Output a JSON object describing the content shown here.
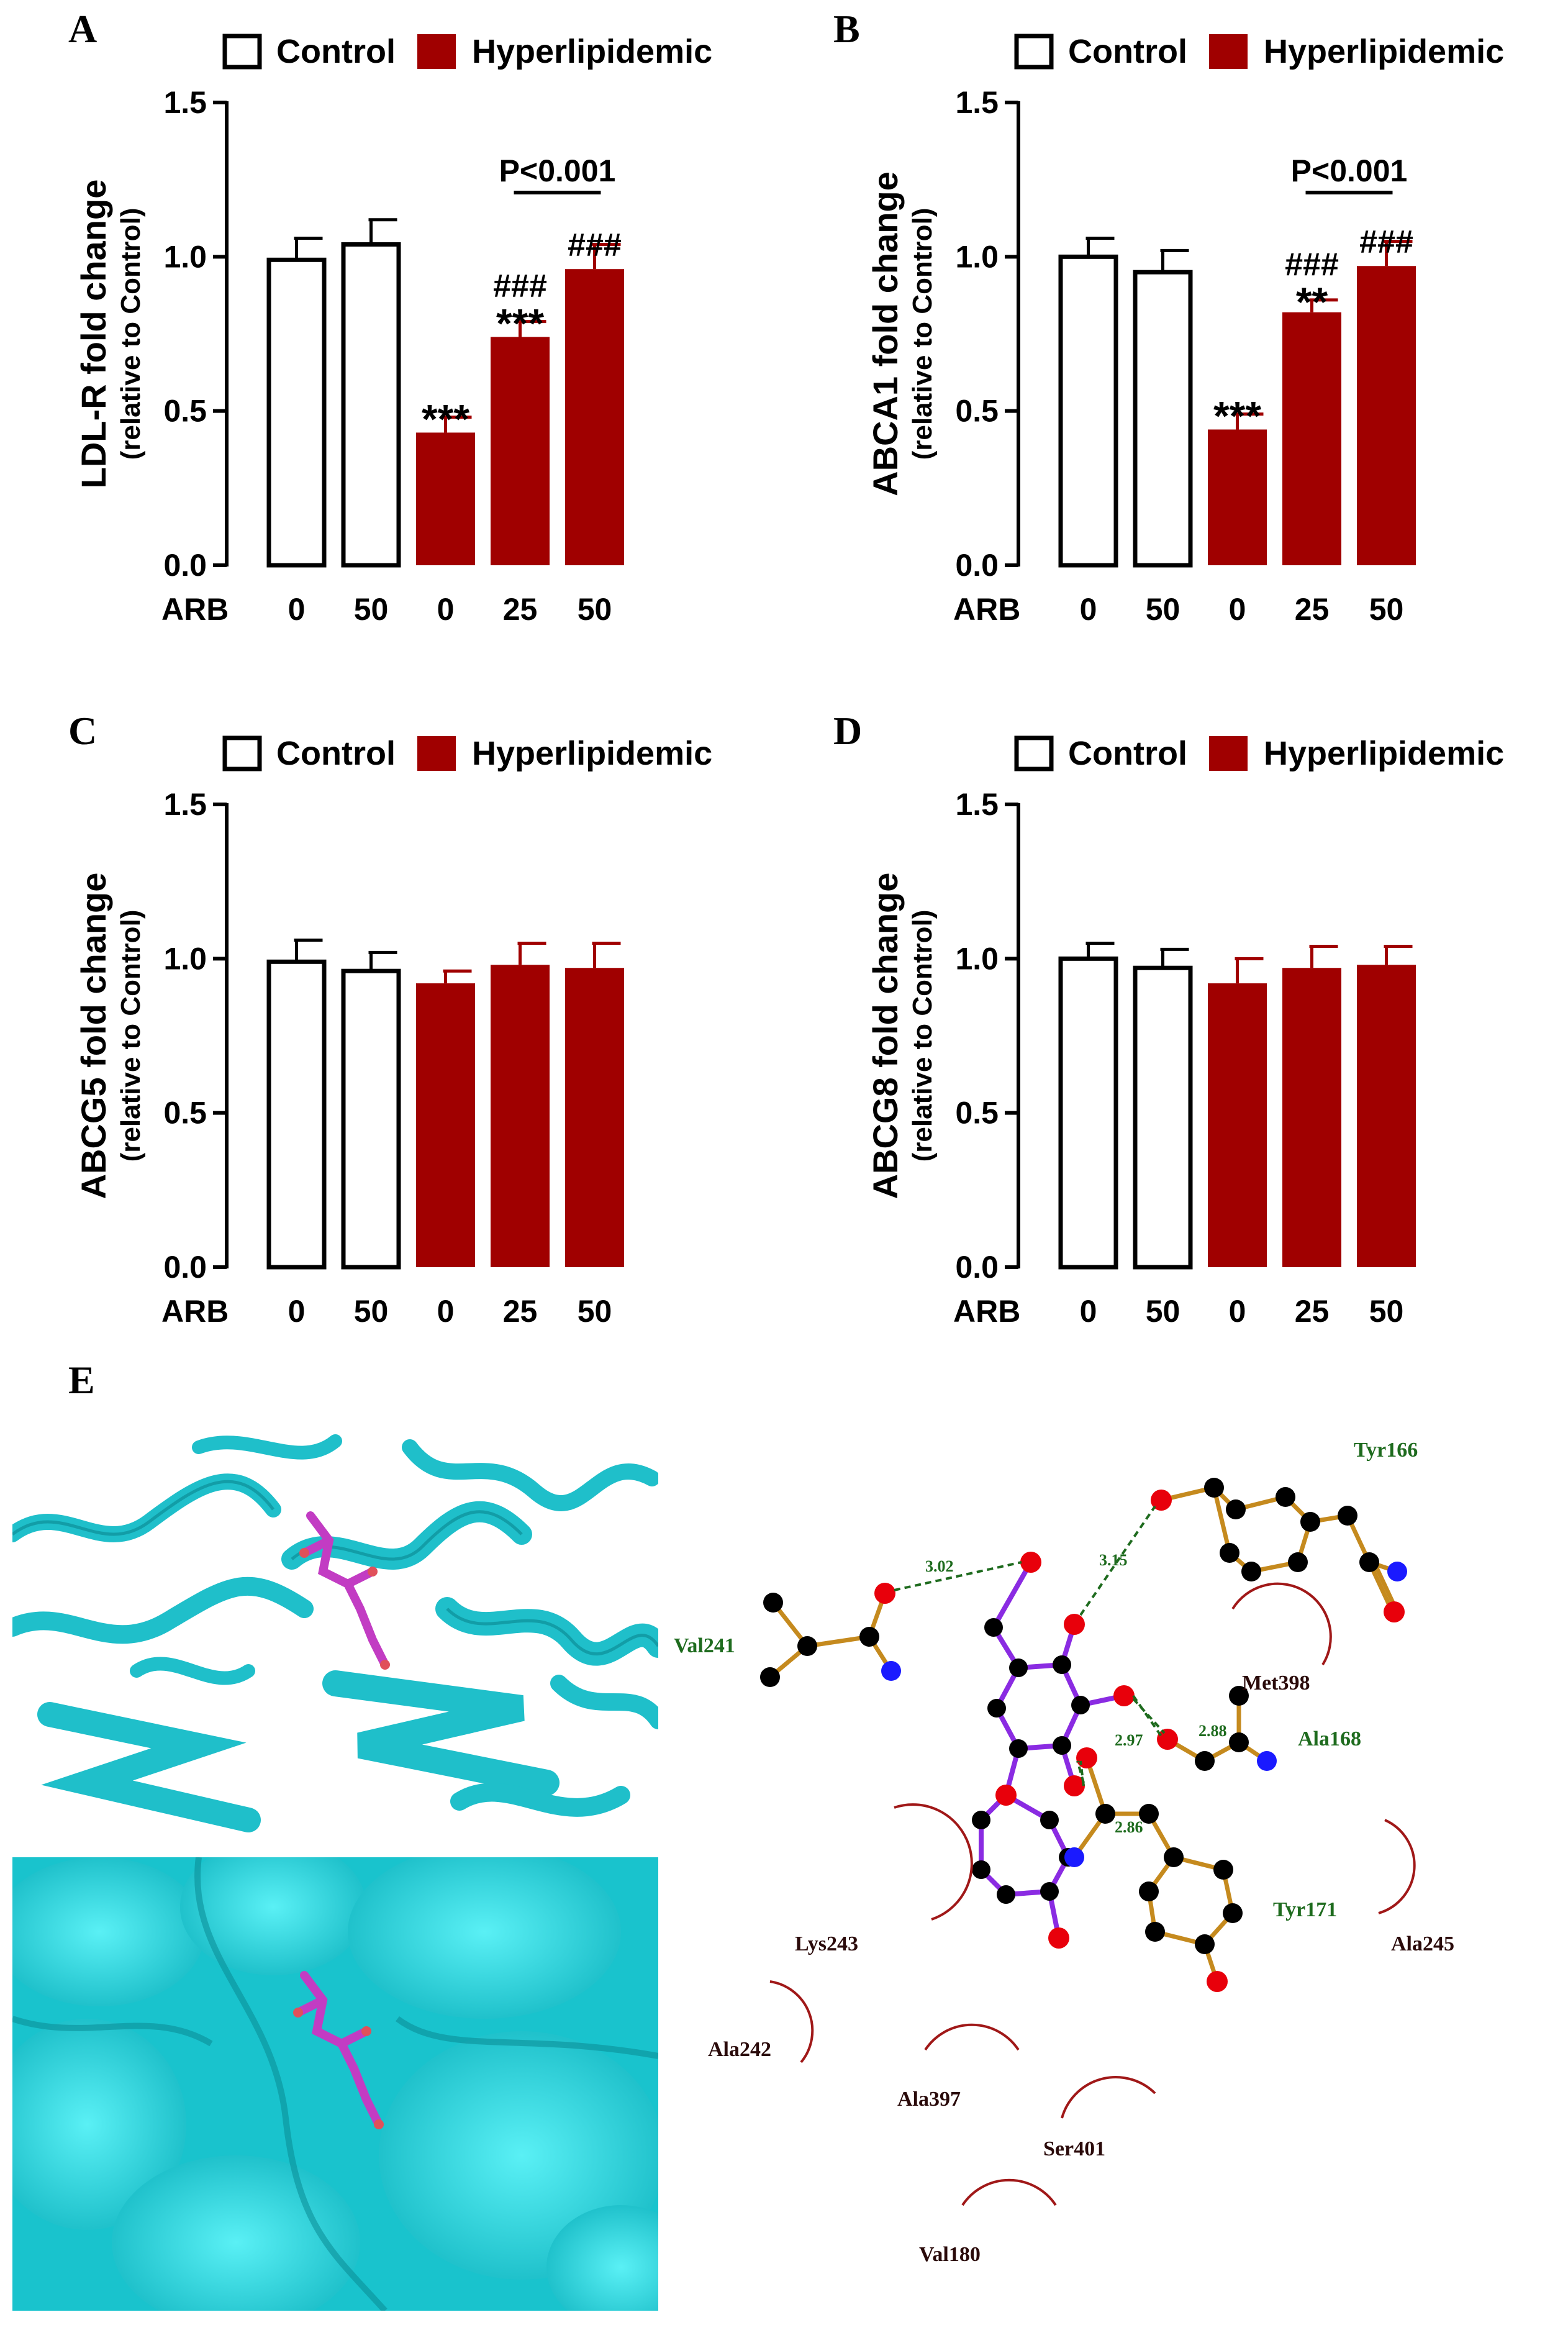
{
  "panels": {
    "a": "A",
    "b": "B",
    "c": "C",
    "d": "D",
    "e": "E"
  },
  "legend": {
    "control": "Control",
    "hyperlipidemic": "Hyperlipidemic"
  },
  "colors": {
    "control_fill": "#ffffff",
    "hyper_fill": "#a00000",
    "edge": "#000000",
    "protein": "#22c7d1",
    "ligand": "#c23cc3",
    "hbond": "#1e6b1e",
    "residue_hydrophobic": "#8b1a1a"
  },
  "chart_data": [
    {
      "panel": "A",
      "type": "bar",
      "ylabel": "LDL-R fold change",
      "ylabel_sub": "(relative to Control)",
      "xrow_label": "ARB",
      "categories": [
        "0",
        "50",
        "0",
        "25",
        "50"
      ],
      "groups": [
        "Control",
        "Control",
        "Hyperlipidemic",
        "Hyperlipidemic",
        "Hyperlipidemic"
      ],
      "values": [
        0.99,
        1.04,
        0.43,
        0.74,
        0.96
      ],
      "errors": [
        0.07,
        0.08,
        0.05,
        0.05,
        0.08
      ],
      "ylim": [
        0,
        1.5
      ],
      "yticks": [
        "0.0",
        "0.5",
        "1.0",
        "1.5"
      ],
      "annotations": [
        {
          "bar": 2,
          "stars": "***",
          "hash": ""
        },
        {
          "bar": 3,
          "stars": "***",
          "hash": "###"
        },
        {
          "bar": 4,
          "stars": "",
          "hash": "###"
        }
      ],
      "pvalue": {
        "text": "P<0.001",
        "from": 3,
        "to": 4
      }
    },
    {
      "panel": "B",
      "type": "bar",
      "ylabel": "ABCA1 fold change",
      "ylabel_sub": "(relative to Control)",
      "xrow_label": "ARB",
      "categories": [
        "0",
        "50",
        "0",
        "25",
        "50"
      ],
      "groups": [
        "Control",
        "Control",
        "Hyperlipidemic",
        "Hyperlipidemic",
        "Hyperlipidemic"
      ],
      "values": [
        1.0,
        0.95,
        0.44,
        0.82,
        0.97
      ],
      "errors": [
        0.06,
        0.07,
        0.05,
        0.04,
        0.08
      ],
      "ylim": [
        0,
        1.5
      ],
      "yticks": [
        "0.0",
        "0.5",
        "1.0",
        "1.5"
      ],
      "annotations": [
        {
          "bar": 2,
          "stars": "***",
          "hash": ""
        },
        {
          "bar": 3,
          "stars": "**",
          "hash": "###"
        },
        {
          "bar": 4,
          "stars": "",
          "hash": "###"
        }
      ],
      "pvalue": {
        "text": "P<0.001",
        "from": 3,
        "to": 4
      }
    },
    {
      "panel": "C",
      "type": "bar",
      "ylabel": "ABCG5 fold change",
      "ylabel_sub": "(relative to Control)",
      "xrow_label": "ARB",
      "categories": [
        "0",
        "50",
        "0",
        "25",
        "50"
      ],
      "groups": [
        "Control",
        "Control",
        "Hyperlipidemic",
        "Hyperlipidemic",
        "Hyperlipidemic"
      ],
      "values": [
        0.99,
        0.96,
        0.92,
        0.98,
        0.97
      ],
      "errors": [
        0.07,
        0.06,
        0.04,
        0.07,
        0.08
      ],
      "ylim": [
        0,
        1.5
      ],
      "yticks": [
        "0.0",
        "0.5",
        "1.0",
        "1.5"
      ],
      "annotations": [],
      "pvalue": null
    },
    {
      "panel": "D",
      "type": "bar",
      "ylabel": "ABCG8 fold change",
      "ylabel_sub": "(relative to Control)",
      "xrow_label": "ARB",
      "categories": [
        "0",
        "50",
        "0",
        "25",
        "50"
      ],
      "groups": [
        "Control",
        "Control",
        "Hyperlipidemic",
        "Hyperlipidemic",
        "Hyperlipidemic"
      ],
      "values": [
        1.0,
        0.97,
        0.92,
        0.97,
        0.98
      ],
      "errors": [
        0.05,
        0.06,
        0.08,
        0.07,
        0.06
      ],
      "ylim": [
        0,
        1.5
      ],
      "yticks": [
        "0.0",
        "0.5",
        "1.0",
        "1.5"
      ],
      "annotations": [],
      "pvalue": null
    }
  ],
  "interaction": {
    "residues_hbond": [
      "Tyr166",
      "Val241",
      "Ala168",
      "Tyr171"
    ],
    "residues_hydrophobic": [
      "Met398",
      "Lys243",
      "Ala245",
      "Ala242",
      "Ala397",
      "Ser401",
      "Val180"
    ],
    "hbond_distances": [
      "3.02",
      "3.15",
      "2.97",
      "2.88",
      "2.86"
    ]
  }
}
